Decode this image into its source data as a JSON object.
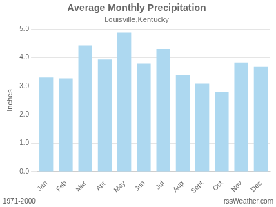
{
  "chart_data": {
    "type": "bar",
    "title": "Average Monthly Precipitation",
    "subtitle": "Louisville,Kentucky",
    "ylabel": "Inches",
    "annotations": [
      "1971-2000",
      "rssWeather.com"
    ],
    "categories": [
      "Jan",
      "Feb",
      "Mar",
      "Apr",
      "May",
      "Jun",
      "Jul",
      "Aug",
      "Sept",
      "Oct",
      "Nov",
      "Dec"
    ],
    "values": [
      3.3,
      3.27,
      4.43,
      3.93,
      4.87,
      3.78,
      4.3,
      3.4,
      3.08,
      2.8,
      3.82,
      3.68
    ],
    "color": "#add8f0",
    "ylim": [
      0.0,
      5.0
    ],
    "yticks": [
      {
        "value": 0,
        "label": "0.0"
      },
      {
        "value": 1,
        "label": "1.0"
      },
      {
        "value": 2,
        "label": "2.0"
      },
      {
        "value": 3,
        "label": "3.0"
      },
      {
        "value": 4,
        "label": "4.0"
      },
      {
        "value": 5,
        "label": "5.0"
      }
    ],
    "grid": true
  }
}
